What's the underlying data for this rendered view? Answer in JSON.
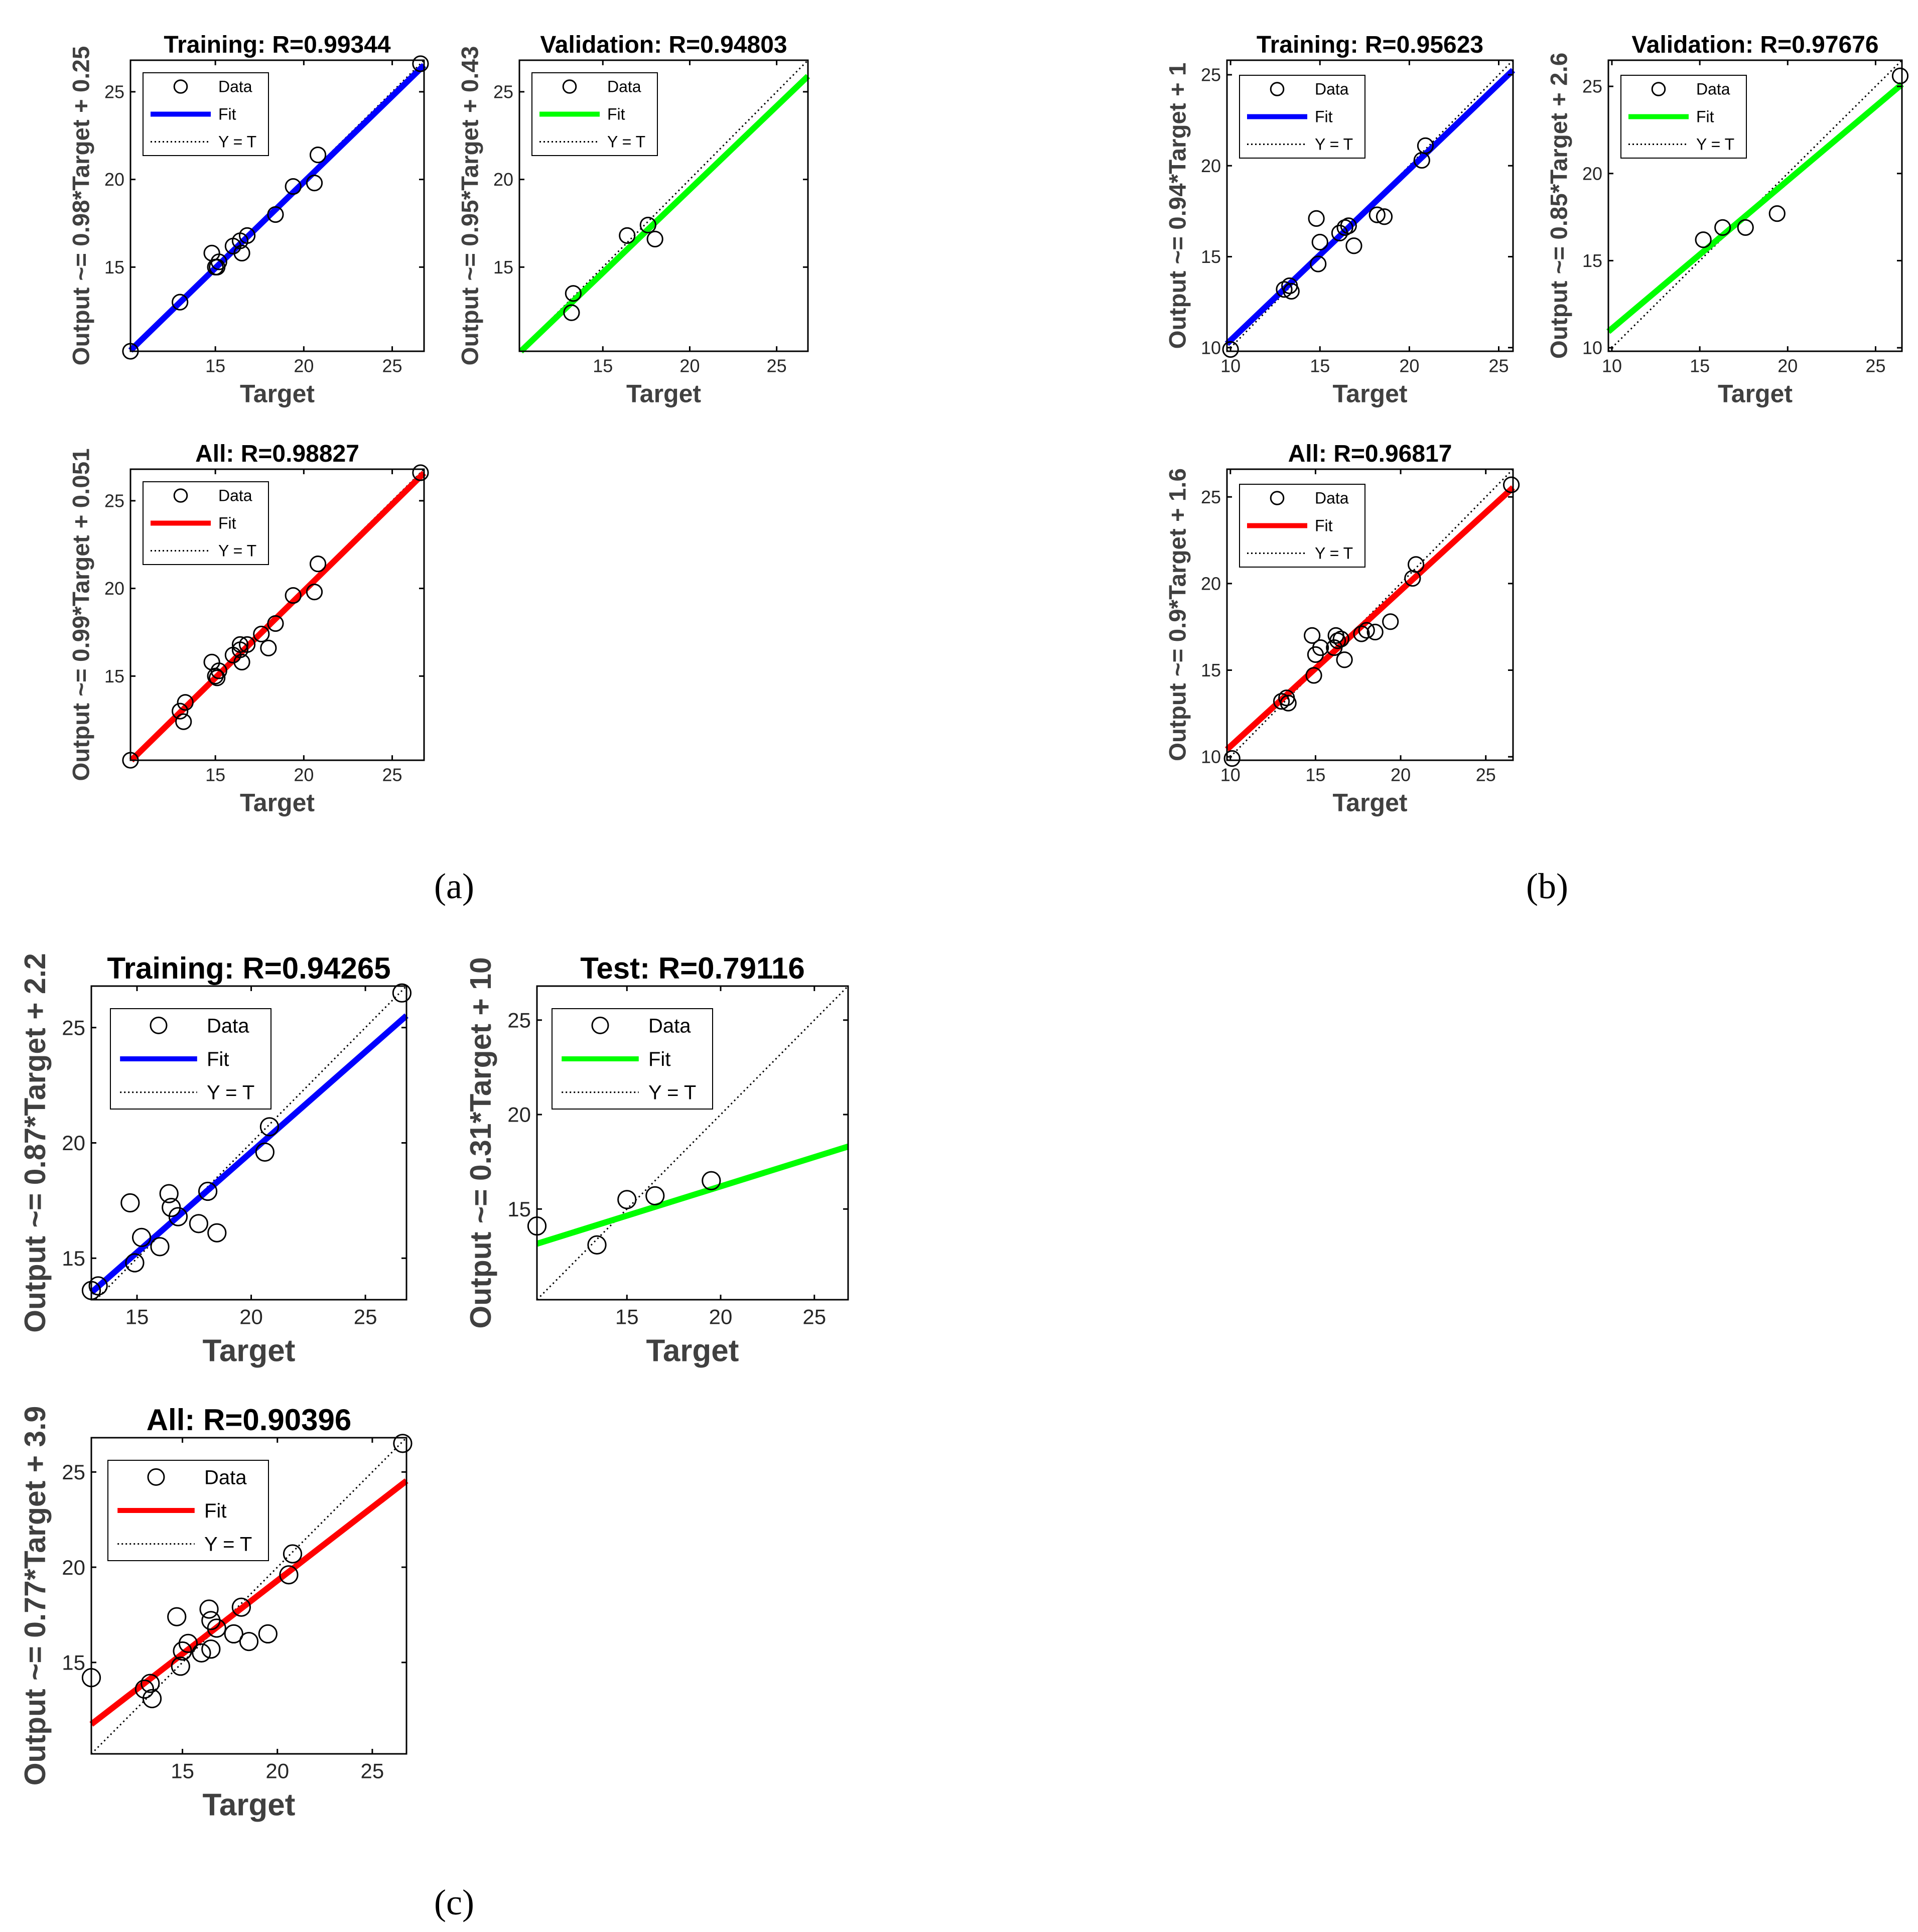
{
  "colors": {
    "training_fit": "#0000ff",
    "validation_fit": "#00ff00",
    "all_fit": "#ff0000",
    "axes": "#000000",
    "reference": "#000000"
  },
  "legend": {
    "data": "Data",
    "fit": "Fit",
    "yt": "Y = T"
  },
  "panels": [
    {
      "id": "a",
      "caption": "(a)"
    },
    {
      "id": "b",
      "caption": "(b)"
    },
    {
      "id": "c",
      "caption": "(c)"
    }
  ],
  "chart_data": [
    {
      "panel": "a",
      "type": "scatter",
      "title": "Training: R=0.99344",
      "xlabel": "Target",
      "ylabel": "Output ~= 0.98*Target + 0.25",
      "xlim": [
        10.2,
        26.8
      ],
      "ylim": [
        10.2,
        26.8
      ],
      "xticks": [
        15,
        20,
        25
      ],
      "yticks": [
        15,
        20,
        25
      ],
      "fit": {
        "slope": 0.98,
        "intercept": 0.25,
        "color": "#0000ff"
      },
      "points": [
        [
          10.2,
          10.2
        ],
        [
          13.0,
          13.0
        ],
        [
          14.8,
          15.8
        ],
        [
          15.0,
          15.0
        ],
        [
          15.2,
          15.3
        ],
        [
          15.1,
          15.0
        ],
        [
          16.0,
          16.2
        ],
        [
          16.4,
          16.5
        ],
        [
          16.5,
          15.8
        ],
        [
          16.8,
          16.8
        ],
        [
          18.4,
          18.0
        ],
        [
          19.4,
          19.6
        ],
        [
          20.6,
          19.8
        ],
        [
          20.8,
          21.4
        ],
        [
          26.6,
          26.6
        ]
      ]
    },
    {
      "panel": "a",
      "type": "scatter",
      "title": "Validation: R=0.94803",
      "xlabel": "Target",
      "ylabel": "Output ~= 0.95*Target + 0.43",
      "xlim": [
        10.2,
        26.8
      ],
      "ylim": [
        10.2,
        26.8
      ],
      "xticks": [
        15,
        20,
        25
      ],
      "yticks": [
        15,
        20,
        25
      ],
      "fit": {
        "slope": 0.95,
        "intercept": 0.43,
        "color": "#00ff00"
      },
      "points": [
        [
          13.3,
          13.5
        ],
        [
          13.2,
          12.4
        ],
        [
          16.4,
          16.8
        ],
        [
          17.6,
          17.4
        ],
        [
          18.0,
          16.6
        ]
      ]
    },
    {
      "panel": "a",
      "type": "scatter",
      "title": "All: R=0.98827",
      "xlabel": "Target",
      "ylabel": "Output ~= 0.99*Target + 0.051",
      "xlim": [
        10.2,
        26.8
      ],
      "ylim": [
        10.2,
        26.8
      ],
      "xticks": [
        15,
        20,
        25
      ],
      "yticks": [
        15,
        20,
        25
      ],
      "fit": {
        "slope": 0.99,
        "intercept": 0.051,
        "color": "#ff0000"
      },
      "points": [
        [
          10.2,
          10.2
        ],
        [
          13.0,
          13.0
        ],
        [
          13.3,
          13.5
        ],
        [
          13.2,
          12.4
        ],
        [
          14.8,
          15.8
        ],
        [
          15.0,
          15.0
        ],
        [
          15.2,
          15.3
        ],
        [
          15.1,
          14.9
        ],
        [
          16.0,
          16.2
        ],
        [
          16.4,
          16.5
        ],
        [
          16.5,
          15.8
        ],
        [
          16.4,
          16.8
        ],
        [
          16.8,
          16.8
        ],
        [
          17.6,
          17.4
        ],
        [
          18.0,
          16.6
        ],
        [
          18.4,
          18.0
        ],
        [
          19.4,
          19.6
        ],
        [
          20.6,
          19.8
        ],
        [
          20.8,
          21.4
        ],
        [
          26.6,
          26.6
        ]
      ]
    },
    {
      "panel": "b",
      "type": "scatter",
      "title": "Training: R=0.95623",
      "xlabel": "Target",
      "ylabel": "Output ~= 0.94*Target + 1",
      "xlim": [
        9.8,
        25.8
      ],
      "ylim": [
        9.8,
        25.8
      ],
      "xticks": [
        10,
        15,
        20,
        25
      ],
      "yticks": [
        10,
        15,
        20,
        25
      ],
      "fit": {
        "slope": 0.94,
        "intercept": 1,
        "color": "#0000ff"
      },
      "points": [
        [
          10.0,
          9.9
        ],
        [
          13.0,
          13.2
        ],
        [
          13.4,
          13.1
        ],
        [
          13.3,
          13.4
        ],
        [
          14.8,
          17.1
        ],
        [
          15.0,
          15.8
        ],
        [
          14.9,
          14.6
        ],
        [
          16.1,
          16.3
        ],
        [
          16.4,
          16.6
        ],
        [
          16.6,
          16.7
        ],
        [
          16.9,
          15.6
        ],
        [
          18.2,
          17.3
        ],
        [
          18.6,
          17.2
        ],
        [
          20.7,
          20.3
        ],
        [
          20.9,
          21.1
        ]
      ]
    },
    {
      "panel": "b",
      "type": "scatter",
      "title": "Validation: R=0.97676",
      "xlabel": "Target",
      "ylabel": "Output ~= 0.85*Target + 2.6",
      "xlim": [
        9.8,
        26.5
      ],
      "ylim": [
        9.8,
        26.5
      ],
      "xticks": [
        10,
        15,
        20,
        25
      ],
      "yticks": [
        10,
        15,
        20,
        25
      ],
      "fit": {
        "slope": 0.85,
        "intercept": 2.6,
        "color": "#00ff00"
      },
      "points": [
        [
          15.2,
          16.2
        ],
        [
          16.3,
          16.9
        ],
        [
          17.6,
          16.9
        ],
        [
          19.4,
          17.7
        ],
        [
          26.4,
          25.6
        ]
      ]
    },
    {
      "panel": "b",
      "type": "scatter",
      "title": "All: R=0.96817",
      "xlabel": "Target",
      "ylabel": "Output ~= 0.9*Target + 1.6",
      "xlim": [
        9.8,
        26.6
      ],
      "ylim": [
        9.8,
        26.6
      ],
      "xticks": [
        10,
        15,
        20,
        25
      ],
      "yticks": [
        10,
        15,
        20,
        25
      ],
      "fit": {
        "slope": 0.9,
        "intercept": 1.6,
        "color": "#ff0000"
      },
      "points": [
        [
          10.1,
          9.9
        ],
        [
          13.0,
          13.2
        ],
        [
          13.4,
          13.1
        ],
        [
          13.3,
          13.4
        ],
        [
          14.8,
          17.0
        ],
        [
          15.0,
          15.9
        ],
        [
          14.9,
          14.7
        ],
        [
          15.3,
          16.3
        ],
        [
          16.1,
          16.3
        ],
        [
          16.2,
          17.0
        ],
        [
          16.3,
          16.7
        ],
        [
          16.5,
          16.8
        ],
        [
          16.7,
          15.6
        ],
        [
          17.7,
          17.1
        ],
        [
          18.0,
          17.3
        ],
        [
          18.5,
          17.2
        ],
        [
          19.4,
          17.8
        ],
        [
          20.7,
          20.3
        ],
        [
          20.9,
          21.1
        ],
        [
          26.5,
          25.7
        ]
      ]
    },
    {
      "panel": "c",
      "type": "scatter",
      "title": "Training: R=0.94265",
      "xlabel": "Target",
      "ylabel": "Output ~= 0.87*Target + 2.2",
      "xlim": [
        13.0,
        26.8
      ],
      "ylim": [
        13.2,
        26.8
      ],
      "xticks": [
        15,
        20,
        25
      ],
      "yticks": [
        15,
        20,
        25
      ],
      "fit": {
        "slope": 0.87,
        "intercept": 2.2,
        "color": "#0000ff"
      },
      "points": [
        [
          13.0,
          13.6
        ],
        [
          13.3,
          13.8
        ],
        [
          14.7,
          17.4
        ],
        [
          14.9,
          14.8
        ],
        [
          15.2,
          15.9
        ],
        [
          16.0,
          15.5
        ],
        [
          16.4,
          17.8
        ],
        [
          16.5,
          17.2
        ],
        [
          16.8,
          16.8
        ],
        [
          17.7,
          16.5
        ],
        [
          18.1,
          17.9
        ],
        [
          18.5,
          16.1
        ],
        [
          20.6,
          19.6
        ],
        [
          20.8,
          20.7
        ],
        [
          26.6,
          26.5
        ]
      ]
    },
    {
      "panel": "c",
      "type": "scatter",
      "title": "Test: R=0.79116",
      "xlabel": "Target",
      "ylabel": "Output ~= 0.31*Target + 10",
      "xlim": [
        10.2,
        26.8
      ],
      "ylim": [
        10.2,
        26.8
      ],
      "xticks": [
        15,
        20,
        25
      ],
      "yticks": [
        15,
        20,
        25
      ],
      "fit": {
        "slope": 0.31,
        "intercept": 10,
        "color": "#00ff00"
      },
      "points": [
        [
          10.2,
          14.1
        ],
        [
          13.4,
          13.1
        ],
        [
          15.0,
          15.5
        ],
        [
          16.5,
          15.7
        ],
        [
          19.5,
          16.5
        ]
      ]
    },
    {
      "panel": "c",
      "type": "scatter",
      "title": "All: R=0.90396",
      "xlabel": "Target",
      "ylabel": "Output ~= 0.77*Target + 3.9",
      "xlim": [
        10.2,
        26.8
      ],
      "ylim": [
        10.2,
        26.8
      ],
      "xticks": [
        15,
        20,
        25
      ],
      "yticks": [
        15,
        20,
        25
      ],
      "fit": {
        "slope": 0.77,
        "intercept": 3.9,
        "color": "#ff0000"
      },
      "points": [
        [
          10.2,
          14.2
        ],
        [
          13.0,
          13.6
        ],
        [
          13.3,
          13.9
        ],
        [
          13.4,
          13.1
        ],
        [
          14.7,
          17.4
        ],
        [
          14.9,
          14.8
        ],
        [
          15.0,
          15.6
        ],
        [
          15.3,
          16.0
        ],
        [
          16.0,
          15.5
        ],
        [
          16.4,
          17.8
        ],
        [
          16.5,
          17.2
        ],
        [
          16.5,
          15.7
        ],
        [
          16.8,
          16.8
        ],
        [
          17.7,
          16.5
        ],
        [
          18.1,
          17.9
        ],
        [
          18.5,
          16.1
        ],
        [
          19.5,
          16.5
        ],
        [
          20.6,
          19.6
        ],
        [
          20.8,
          20.7
        ],
        [
          26.6,
          26.5
        ]
      ]
    }
  ]
}
